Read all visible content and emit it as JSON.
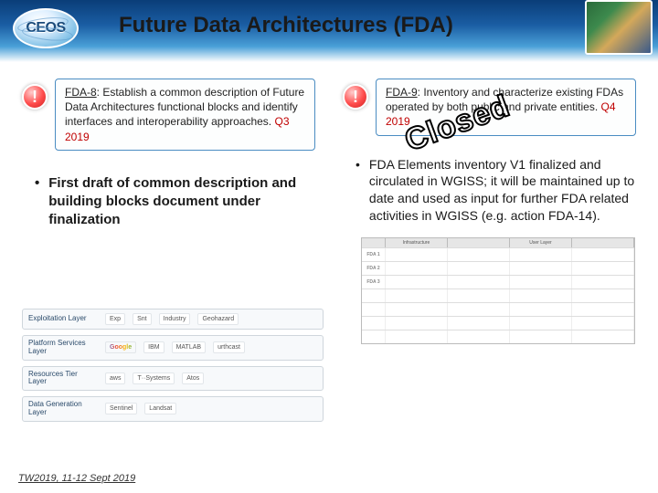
{
  "header": {
    "logo_text": "CEOS",
    "title": "Future Data Architectures (FDA)"
  },
  "left": {
    "action": {
      "id": "FDA-8",
      "body": ": Establish a common description of Future Data Architectures functional blocks and identify interfaces and interoperability approaches. ",
      "date": "Q3 2019"
    },
    "bullet": "First draft of common description and building blocks document under finalization",
    "logo_bands": [
      {
        "label": "Exploitation Layer",
        "items": [
          "Exp",
          "Snt",
          "Industry",
          "Geohazard"
        ]
      },
      {
        "label": "Platform Services Layer",
        "items": [
          "Google",
          "IBM",
          "MATLAB",
          "urthcast"
        ]
      },
      {
        "label": "Resources Tier Layer",
        "items": [
          "aws",
          "T··Systems",
          "Atos"
        ]
      },
      {
        "label": "Data Generation Layer",
        "items": [
          "Sentinel",
          "Landsat"
        ]
      }
    ]
  },
  "right": {
    "action": {
      "id": "FDA-9",
      "body": ": Inventory and characterize existing FDAs operated by both public and private entities. ",
      "date": "Q4 2019"
    },
    "closed_stamp": "Closed",
    "bullet": "FDA Elements inventory V1 finalized and circulated in WGISS; it will be maintained up to date and used as input for further FDA related activities in WGISS (e.g. action FDA-14).",
    "table": {
      "headers": [
        "",
        "Infrastructure",
        "",
        "User Layer",
        ""
      ],
      "fda_labels": [
        "FDA 1",
        "FDA 2",
        "FDA 3"
      ]
    }
  },
  "footer": "TW2019, 11-12 Sept 2019"
}
